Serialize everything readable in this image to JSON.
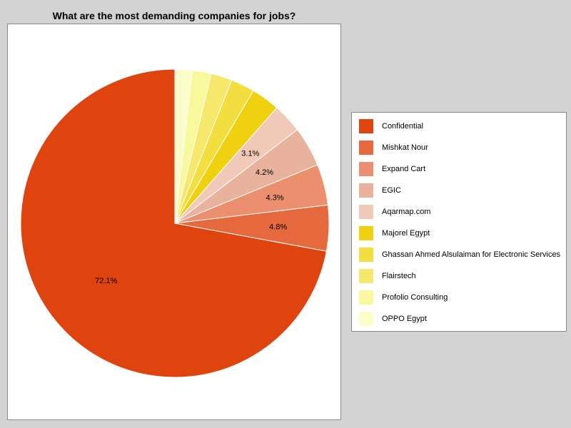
{
  "chart_data": {
    "type": "pie",
    "title": "What are the most demanding companies for jobs?",
    "slices": [
      {
        "label": "Confidential",
        "value": 72.1,
        "color": "#e0440e",
        "value_label": "72.1%"
      },
      {
        "label": "Mishkat Nour",
        "value": 4.8,
        "color": "#e6693e",
        "value_label": "4.8%"
      },
      {
        "label": "Expand Cart",
        "value": 4.3,
        "color": "#ec8f6e",
        "value_label": "4.3%"
      },
      {
        "label": "EGIC",
        "value": 4.2,
        "color": "#e9b29d",
        "value_label": "4.2%"
      },
      {
        "label": "Aqarmap.com",
        "value": 3.1,
        "color": "#f0c9b9",
        "value_label": "3.1%"
      },
      {
        "label": "Majorel Egypt",
        "value": 3.0,
        "color": "#efd10f",
        "value_label": ""
      },
      {
        "label": "Ghassan Ahmed Alsulaiman for Electronic Services",
        "value": 2.5,
        "color": "#f2de3e",
        "value_label": ""
      },
      {
        "label": "Flairstech",
        "value": 2.2,
        "color": "#f5e86c",
        "value_label": ""
      },
      {
        "label": "Profolio Consulting",
        "value": 2.0,
        "color": "#f8f89c",
        "value_label": ""
      },
      {
        "label": "OPPO Egypt",
        "value": 1.8,
        "color": "#fbfdca",
        "value_label": ""
      }
    ],
    "legend_position": "right"
  }
}
